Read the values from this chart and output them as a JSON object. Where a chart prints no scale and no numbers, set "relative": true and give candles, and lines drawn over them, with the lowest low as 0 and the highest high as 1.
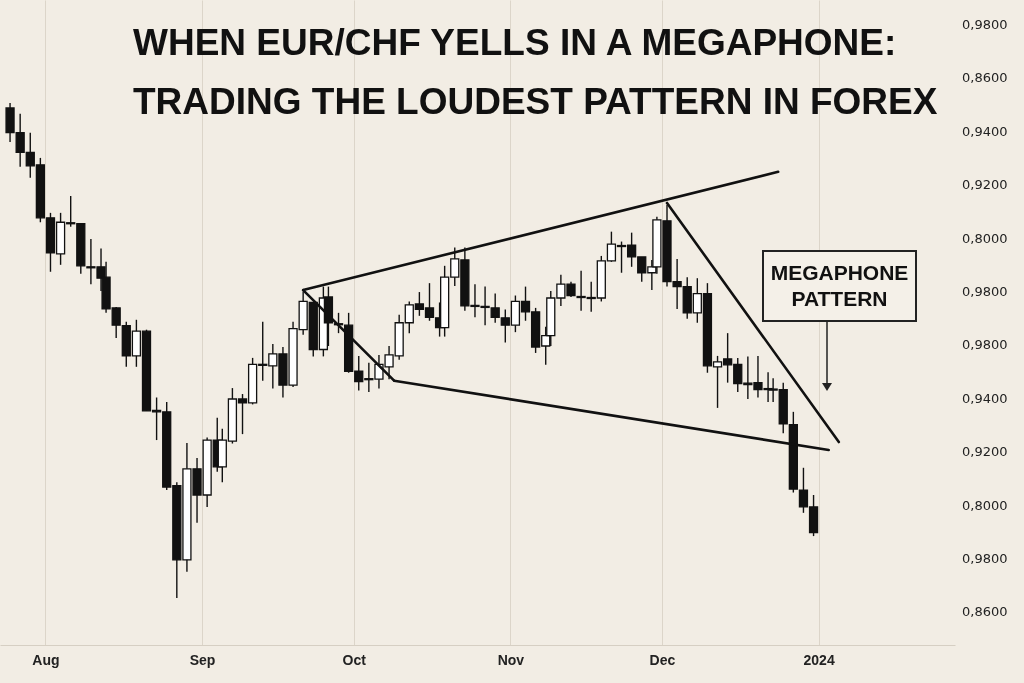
{
  "chart_data": {
    "type": "candlestick",
    "title": "WHEN EUR/CHF YELLS IN A MEGAPHONE:",
    "subtitle": "TRADING THE LOUDEST PATTERN IN FOREX",
    "relative": true,
    "x": [
      "2023-07-25",
      "2023-07-27",
      "2023-07-29",
      "2023-07-31",
      "2023-08-02",
      "2023-08-04",
      "2023-08-06",
      "2023-08-08",
      "2023-08-10",
      "2023-08-12",
      "2023-08-13",
      "2023-08-15",
      "2023-08-17",
      "2023-08-19",
      "2023-08-21",
      "2023-08-23",
      "2023-08-25",
      "2023-08-27",
      "2023-08-29",
      "2023-08-31",
      "2023-09-02",
      "2023-09-04",
      "2023-09-05",
      "2023-09-07",
      "2023-09-09",
      "2023-09-11",
      "2023-09-13",
      "2023-09-15",
      "2023-09-17",
      "2023-09-19",
      "2023-09-21",
      "2023-09-23",
      "2023-09-25",
      "2023-09-26",
      "2023-09-28",
      "2023-09-30",
      "2023-10-02",
      "2023-10-04",
      "2023-10-06",
      "2023-10-08",
      "2023-10-10",
      "2023-10-12",
      "2023-10-14",
      "2023-10-16",
      "2023-10-18",
      "2023-10-19",
      "2023-10-21",
      "2023-10-23",
      "2023-10-25",
      "2023-10-27",
      "2023-10-29",
      "2023-10-31",
      "2023-11-02",
      "2023-11-04",
      "2023-11-06",
      "2023-11-08",
      "2023-11-09",
      "2023-11-11",
      "2023-11-13",
      "2023-11-15",
      "2023-11-17",
      "2023-11-19",
      "2023-11-21",
      "2023-11-23",
      "2023-11-25",
      "2023-11-27",
      "2023-11-29",
      "2023-11-30",
      "2023-12-02",
      "2023-12-04",
      "2023-12-06",
      "2023-12-08",
      "2023-12-10",
      "2023-12-12",
      "2023-12-14",
      "2023-12-16",
      "2023-12-18",
      "2023-12-20",
      "2023-12-22",
      "2023-12-23",
      "2023-12-25",
      "2023-12-27",
      "2023-12-29",
      "2023-12-31"
    ],
    "ohlc": [
      [
        0.99,
        1.0,
        0.921,
        0.94
      ],
      [
        0.94,
        0.978,
        0.871,
        0.9
      ],
      [
        0.9,
        0.94,
        0.849,
        0.873
      ],
      [
        0.875,
        0.889,
        0.759,
        0.768
      ],
      [
        0.768,
        0.778,
        0.659,
        0.697
      ],
      [
        0.695,
        0.778,
        0.673,
        0.759
      ],
      [
        0.758,
        0.812,
        0.75,
        0.756
      ],
      [
        0.756,
        0.756,
        0.655,
        0.671
      ],
      [
        0.669,
        0.725,
        0.634,
        0.667
      ],
      [
        0.669,
        0.706,
        0.62,
        0.646
      ],
      [
        0.648,
        0.679,
        0.576,
        0.584
      ],
      [
        0.586,
        0.588,
        0.525,
        0.551
      ],
      [
        0.55,
        0.558,
        0.467,
        0.489
      ],
      [
        0.489,
        0.562,
        0.467,
        0.539
      ],
      [
        0.539,
        0.542,
        0.378,
        0.378
      ],
      [
        0.379,
        0.405,
        0.319,
        0.376
      ],
      [
        0.376,
        0.396,
        0.218,
        0.224
      ],
      [
        0.227,
        0.234,
        0,
        0.077
      ],
      [
        0.077,
        0.313,
        0.053,
        0.261
      ],
      [
        0.261,
        0.283,
        0.152,
        0.208
      ],
      [
        0.208,
        0.324,
        0.184,
        0.319
      ],
      [
        0.319,
        0.364,
        0.255,
        0.265
      ],
      [
        0.265,
        0.342,
        0.234,
        0.319
      ],
      [
        0.317,
        0.424,
        0.312,
        0.402
      ],
      [
        0.402,
        0.412,
        0.331,
        0.394
      ],
      [
        0.394,
        0.485,
        0.391,
        0.472
      ],
      [
        0.472,
        0.558,
        0.439,
        0.47
      ],
      [
        0.469,
        0.513,
        0.423,
        0.493
      ],
      [
        0.493,
        0.507,
        0.405,
        0.43
      ],
      [
        0.43,
        0.558,
        0.426,
        0.544
      ],
      [
        0.542,
        0.618,
        0.532,
        0.599
      ],
      [
        0.597,
        0.597,
        0.488,
        0.502
      ],
      [
        0.502,
        0.629,
        0.488,
        0.606
      ],
      [
        0.608,
        0.629,
        0.509,
        0.556
      ],
      [
        0.554,
        0.576,
        0.535,
        0.552
      ],
      [
        0.551,
        0.576,
        0.455,
        0.458
      ],
      [
        0.458,
        0.489,
        0.419,
        0.437
      ],
      [
        0.443,
        0.475,
        0.416,
        0.441
      ],
      [
        0.442,
        0.491,
        0.423,
        0.472
      ],
      [
        0.467,
        0.509,
        0.442,
        0.491
      ],
      [
        0.489,
        0.572,
        0.481,
        0.556
      ],
      [
        0.556,
        0.599,
        0.535,
        0.592
      ],
      [
        0.594,
        0.618,
        0.57,
        0.583
      ],
      [
        0.586,
        0.636,
        0.56,
        0.567
      ],
      [
        0.566,
        0.597,
        0.528,
        0.546
      ],
      [
        0.546,
        0.671,
        0.528,
        0.648
      ],
      [
        0.648,
        0.708,
        0.63,
        0.685
      ],
      [
        0.683,
        0.708,
        0.58,
        0.59
      ],
      [
        0.591,
        0.634,
        0.567,
        0.589
      ],
      [
        0.589,
        0.629,
        0.551,
        0.587
      ],
      [
        0.586,
        0.615,
        0.556,
        0.567
      ],
      [
        0.566,
        0.583,
        0.516,
        0.551
      ],
      [
        0.551,
        0.611,
        0.537,
        0.599
      ],
      [
        0.599,
        0.629,
        0.56,
        0.578
      ],
      [
        0.578,
        0.586,
        0.495,
        0.507
      ],
      [
        0.509,
        0.548,
        0.471,
        0.53
      ],
      [
        0.53,
        0.62,
        0.509,
        0.606
      ],
      [
        0.606,
        0.653,
        0.59,
        0.634
      ],
      [
        0.634,
        0.639,
        0.608,
        0.611
      ],
      [
        0.609,
        0.661,
        0.58,
        0.607
      ],
      [
        0.607,
        0.639,
        0.578,
        0.605
      ],
      [
        0.606,
        0.691,
        0.599,
        0.681
      ],
      [
        0.681,
        0.74,
        0.679,
        0.715
      ],
      [
        0.712,
        0.72,
        0.657,
        0.71
      ],
      [
        0.713,
        0.738,
        0.669,
        0.689
      ],
      [
        0.689,
        0.689,
        0.639,
        0.657
      ],
      [
        0.657,
        0.683,
        0.622,
        0.669
      ],
      [
        0.669,
        0.77,
        0.655,
        0.764
      ],
      [
        0.762,
        0.794,
        0.629,
        0.639
      ],
      [
        0.639,
        0.685,
        0.584,
        0.629
      ],
      [
        0.629,
        0.648,
        0.564,
        0.576
      ],
      [
        0.576,
        0.646,
        0.556,
        0.615
      ],
      [
        0.615,
        0.636,
        0.455,
        0.469
      ],
      [
        0.467,
        0.489,
        0.384,
        0.477
      ],
      [
        0.483,
        0.535,
        0.435,
        0.471
      ],
      [
        0.472,
        0.485,
        0.416,
        0.433
      ],
      [
        0.434,
        0.488,
        0.402,
        0.431
      ],
      [
        0.435,
        0.489,
        0.405,
        0.421
      ],
      [
        0.423,
        0.456,
        0.396,
        0.421
      ],
      [
        0.422,
        0.444,
        0.396,
        0.42
      ],
      [
        0.421,
        0.435,
        0.333,
        0.352
      ],
      [
        0.35,
        0.376,
        0.213,
        0.22
      ],
      [
        0.218,
        0.263,
        0.172,
        0.184
      ],
      [
        0.184,
        0.208,
        0.125,
        0.132
      ]
    ],
    "series": [
      {
        "type": "line",
        "color": "#111111",
        "x": [
          "2023-09-21",
          "2023-12-24"
        ],
        "values": [
          0.622,
          0.861
        ]
      },
      {
        "type": "line",
        "color": "#111111",
        "x": [
          "2023-10-09",
          "2024-01-03"
        ],
        "values": [
          0.439,
          0.299
        ]
      },
      {
        "type": "line",
        "color": "#111111",
        "x": [
          "2023-09-21",
          "2023-10-09"
        ],
        "values": [
          0.622,
          0.439
        ]
      },
      {
        "type": "line",
        "color": "#111111",
        "x": [
          "2023-12-02",
          "2024-01-05"
        ],
        "values": [
          0.798,
          0.315
        ]
      }
    ],
    "annotations": [
      "MEGAPHONE PATTERN",
      "0,9800",
      "0,8600",
      "0,9400",
      "0,9200",
      "0,8000",
      "0,9800",
      "0,9800",
      "0,9400",
      "0,9200",
      "0,8000",
      "0,9800",
      "0,8600"
    ],
    "xlim": [
      "2023-07-24",
      "2024-01-27"
    ],
    "xticks": [
      {
        "value": "2023-08-01",
        "label": "Aug"
      },
      {
        "value": "2023-09-01",
        "label": "Sep"
      },
      {
        "value": "2023-10-01",
        "label": "Oct"
      },
      {
        "value": "2023-11-01",
        "label": "Nov"
      },
      {
        "value": "2023-12-01",
        "label": "Dec"
      },
      {
        "value": "2024-01-01",
        "label": "2024"
      }
    ],
    "grid": "x"
  }
}
